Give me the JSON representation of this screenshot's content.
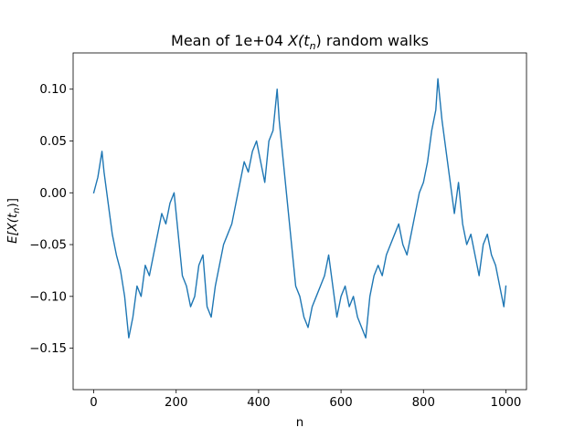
{
  "chart_data": {
    "type": "line",
    "title_prefix": "Mean of 1e+04 ",
    "title_math_base": "X(t",
    "title_math_sub": "n",
    "title_math_close": ")",
    "title_suffix": " random walks",
    "xlabel": "n",
    "ylabel_math_base": "E[X(t",
    "ylabel_math_sub": "n",
    "ylabel_math_close": ")]",
    "xlim": [
      -50,
      1050
    ],
    "ylim": [
      -0.19,
      0.135
    ],
    "x_ticks": [
      0,
      200,
      400,
      600,
      800,
      1000
    ],
    "x_tick_labels": [
      "0",
      "200",
      "400",
      "600",
      "800",
      "1000"
    ],
    "y_ticks": [
      -0.15,
      -0.1,
      -0.05,
      0.0,
      0.05,
      0.1
    ],
    "y_tick_labels": [
      "−0.15",
      "−0.10",
      "−0.05",
      "0.00",
      "0.05",
      "0.10"
    ],
    "grid": false,
    "series": [
      {
        "color": "#1f77b4",
        "x": [
          0,
          10,
          20,
          25,
          35,
          45,
          55,
          65,
          75,
          85,
          95,
          105,
          115,
          125,
          135,
          145,
          155,
          165,
          175,
          185,
          195,
          205,
          215,
          225,
          235,
          245,
          255,
          265,
          275,
          285,
          295,
          305,
          315,
          325,
          335,
          345,
          355,
          365,
          375,
          385,
          395,
          405,
          415,
          425,
          435,
          445,
          450,
          460,
          470,
          480,
          490,
          500,
          510,
          520,
          530,
          540,
          550,
          560,
          570,
          580,
          590,
          600,
          610,
          620,
          630,
          640,
          650,
          660,
          670,
          680,
          690,
          700,
          710,
          720,
          730,
          740,
          750,
          760,
          770,
          780,
          790,
          800,
          810,
          820,
          830,
          835,
          845,
          855,
          865,
          875,
          885,
          895,
          905,
          915,
          925,
          935,
          945,
          955,
          965,
          975,
          985,
          995,
          1000
        ],
        "y": [
          0.0,
          0.015,
          0.04,
          0.02,
          -0.01,
          -0.04,
          -0.06,
          -0.075,
          -0.1,
          -0.14,
          -0.12,
          -0.09,
          -0.1,
          -0.07,
          -0.08,
          -0.06,
          -0.04,
          -0.02,
          -0.03,
          -0.01,
          0.0,
          -0.04,
          -0.08,
          -0.09,
          -0.11,
          -0.1,
          -0.07,
          -0.06,
          -0.11,
          -0.12,
          -0.09,
          -0.07,
          -0.05,
          -0.04,
          -0.03,
          -0.01,
          0.01,
          0.03,
          0.02,
          0.04,
          0.05,
          0.03,
          0.01,
          0.05,
          0.06,
          0.1,
          0.07,
          0.03,
          -0.01,
          -0.05,
          -0.09,
          -0.1,
          -0.12,
          -0.13,
          -0.11,
          -0.1,
          -0.09,
          -0.08,
          -0.06,
          -0.09,
          -0.12,
          -0.1,
          -0.09,
          -0.11,
          -0.1,
          -0.12,
          -0.13,
          -0.14,
          -0.1,
          -0.08,
          -0.07,
          -0.08,
          -0.06,
          -0.05,
          -0.04,
          -0.03,
          -0.05,
          -0.06,
          -0.04,
          -0.02,
          0.0,
          0.01,
          0.03,
          0.06,
          0.08,
          0.11,
          0.07,
          0.04,
          0.01,
          -0.02,
          0.01,
          -0.03,
          -0.05,
          -0.04,
          -0.06,
          -0.08,
          -0.05,
          -0.04,
          -0.06,
          -0.07,
          -0.09,
          -0.11,
          -0.09
        ]
      }
    ]
  }
}
